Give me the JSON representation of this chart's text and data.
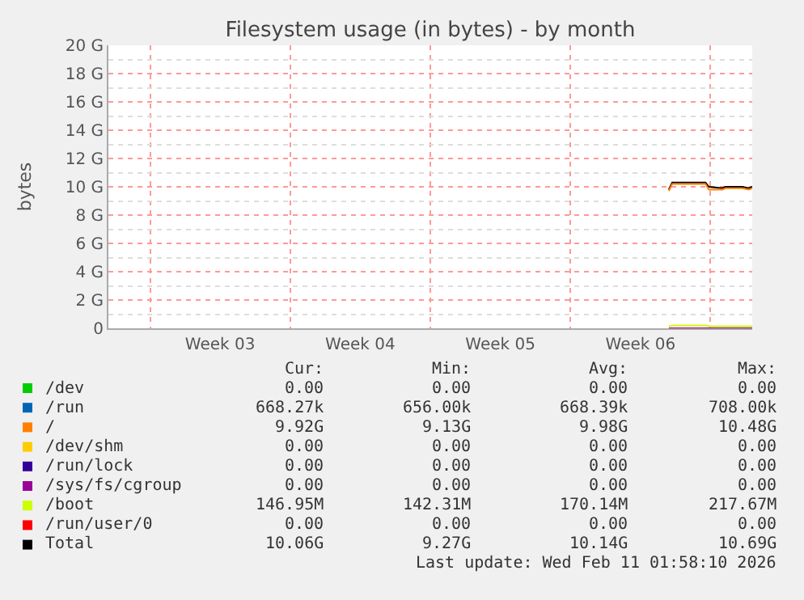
{
  "chart_data": {
    "type": "line",
    "title": "Filesystem usage (in bytes) - by month",
    "ylabel": "bytes",
    "x": [
      "2026-02-06T22:00",
      "2026-02-07T02:00",
      "2026-02-08T18:00",
      "2026-02-08T22:00",
      "2026-02-09T14:00",
      "2026-02-09T18:00",
      "2026-02-10T14:00",
      "2026-02-10T22:00",
      "2026-02-11T02:00"
    ],
    "series": [
      {
        "name": "/dev",
        "color": "#00cc00",
        "values": [
          null,
          null,
          null,
          null,
          null,
          null,
          null,
          null,
          null
        ]
      },
      {
        "name": "/run",
        "color": "#0066b3",
        "values": [
          null,
          null,
          null,
          null,
          null,
          null,
          null,
          null,
          null
        ]
      },
      {
        "name": "/",
        "color": "#ff8000",
        "values": [
          9.7,
          10.2,
          10.2,
          9.8,
          9.8,
          9.9,
          9.9,
          9.8,
          9.9
        ]
      },
      {
        "name": "/dev/shm",
        "color": "#ffcc00",
        "values": [
          null,
          null,
          null,
          null,
          null,
          null,
          null,
          null,
          null
        ]
      },
      {
        "name": "/run/lock",
        "color": "#330099",
        "values": [
          null,
          null,
          null,
          null,
          null,
          null,
          null,
          null,
          null
        ]
      },
      {
        "name": "/sys/fs/cgroup",
        "color": "#990099",
        "values": [
          0,
          0,
          0,
          0,
          0,
          0,
          0,
          0,
          0
        ]
      },
      {
        "name": "/boot",
        "color": "#ccff00",
        "values": [
          0.15,
          0.2,
          0.2,
          0.15,
          0.15,
          0.15,
          0.15,
          0.15,
          0.15
        ]
      },
      {
        "name": "/run/user/0",
        "color": "#ff0000",
        "values": [
          null,
          null,
          null,
          null,
          null,
          null,
          null,
          null,
          null
        ]
      },
      {
        "name": "Total",
        "color": "#000000",
        "values": [
          9.8,
          10.3,
          10.3,
          10.0,
          9.9,
          10.0,
          10.0,
          9.9,
          10.0
        ]
      }
    ],
    "xlim": [
      "2026-01-09T22:00",
      "2026-02-11T02:00"
    ],
    "xticks": [
      {
        "value": "2026-01-15T12:00",
        "label": "Week 03"
      },
      {
        "value": "2026-01-22T12:00",
        "label": "Week 04"
      },
      {
        "value": "2026-01-29T12:00",
        "label": "Week 05"
      },
      {
        "value": "2026-02-05T12:00",
        "label": "Week 06"
      }
    ],
    "ylim": [
      0,
      20
    ],
    "yticks": [
      0,
      {
        "value": 2,
        "label": "2 G"
      },
      {
        "value": 4,
        "label": "4 G"
      },
      {
        "value": 6,
        "label": "6 G"
      },
      {
        "value": 8,
        "label": "8 G"
      },
      {
        "value": 10,
        "label": "10 G"
      },
      {
        "value": 12,
        "label": "12 G"
      },
      {
        "value": 14,
        "label": "14 G"
      },
      {
        "value": 16,
        "label": "16 G"
      },
      {
        "value": 18,
        "label": "18 G"
      },
      {
        "value": 20,
        "label": "20 G"
      }
    ],
    "grid": true,
    "legend": "bottom",
    "marker": "none",
    "line_style": "solid",
    "annotations": [
      "Cur:",
      "Min:",
      "Avg:",
      "Max:",
      "0.00",
      "0.00",
      "0.00",
      "0.00",
      "668.27k",
      "656.00k",
      "668.39k",
      "708.00k",
      "9.92G",
      "9.13G",
      "9.98G",
      "10.48G",
      "0.00",
      "0.00",
      "0.00",
      "0.00",
      "0.00",
      "0.00",
      "0.00",
      "0.00",
      "0.00",
      "0.00",
      "0.00",
      "0.00",
      "146.95M",
      "142.31M",
      "170.14M",
      "217.67M",
      "0.00",
      "0.00",
      "0.00",
      "0.00",
      "10.06G",
      "9.27G",
      "10.14G",
      "10.69G",
      "Last update: Wed Feb 11 01:58:10 2026"
    ]
  }
}
